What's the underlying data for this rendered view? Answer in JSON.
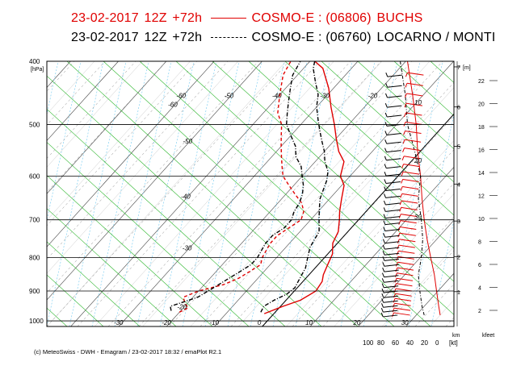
{
  "header": {
    "line1": {
      "date": "23-02-2017",
      "run": "12Z",
      "lead": "+72h",
      "model": "COSMO-E : (06806)",
      "station": "BUCHS",
      "color": "#e00000"
    },
    "line2": {
      "date": "23-02-2017",
      "run": "12Z",
      "lead": "+72h",
      "model": "COSMO-E : (06760)",
      "station": "LOCARNO / MONTI",
      "color": "#000000"
    }
  },
  "footer": "(c) MeteoSwiss - DWH - Emagram / 23-02-2017 18:32 / emaPlot R2.1",
  "chart_data": {
    "type": "line",
    "pressure_axis": {
      "unit": "[hPa]",
      "ticks": [
        400,
        500,
        600,
        700,
        800,
        900,
        1000
      ],
      "range": [
        400,
        1020
      ],
      "scale": "log"
    },
    "temperature_axis": {
      "ticks": [
        -30,
        -20,
        -10,
        0,
        10,
        20,
        30
      ],
      "range": [
        -45,
        40
      ],
      "labels": [
        "-30",
        "-20",
        "-10",
        "0",
        "10",
        "20",
        "30"
      ]
    },
    "isotherm_labels": [
      "-60",
      "-50",
      "-40",
      "-30",
      "-20",
      "-60",
      "-50",
      "-40",
      "-30",
      "-20"
    ],
    "mixing_ratio_labels": [
      "10",
      "20",
      "30"
    ],
    "height_km": {
      "unit": "[m]",
      "label": "km",
      "ticks": [
        1,
        2,
        3,
        4,
        5,
        6,
        7
      ]
    },
    "height_kfeet": {
      "label": "kfeet",
      "ticks": [
        2,
        4,
        6,
        8,
        10,
        12,
        14,
        16,
        18,
        20,
        22
      ]
    },
    "wind_axis": {
      "unit": "[kt]",
      "ticks": [
        100,
        80,
        60,
        40,
        20,
        0
      ]
    },
    "series": [
      {
        "name": "BUCHS T",
        "color": "#e00000",
        "style": "solid",
        "points": [
          [
            -2,
            975
          ],
          [
            0.5,
            950
          ],
          [
            3,
            930
          ],
          [
            4.5,
            900
          ],
          [
            4,
            870
          ],
          [
            3,
            850
          ],
          [
            2,
            820
          ],
          [
            1,
            790
          ],
          [
            -1,
            760
          ],
          [
            -2,
            730
          ],
          [
            -4,
            700
          ],
          [
            -5.5,
            680
          ],
          [
            -7.5,
            650
          ],
          [
            -9.5,
            620
          ],
          [
            -12,
            600
          ],
          [
            -14,
            570
          ],
          [
            -17,
            550
          ],
          [
            -20,
            525
          ],
          [
            -23,
            500
          ],
          [
            -27,
            470
          ],
          [
            -31,
            440
          ],
          [
            -36,
            410
          ],
          [
            -39,
            400
          ]
        ]
      },
      {
        "name": "BUCHS Td",
        "color": "#e00000",
        "style": "dashed",
        "points": [
          [
            -20,
            970
          ],
          [
            -19,
            955
          ],
          [
            -20.5,
            940
          ],
          [
            -22,
            920
          ],
          [
            -20,
            900
          ],
          [
            -16,
            880
          ],
          [
            -14,
            860
          ],
          [
            -13,
            840
          ],
          [
            -12,
            820
          ],
          [
            -13,
            800
          ],
          [
            -13.5,
            780
          ],
          [
            -14,
            760
          ],
          [
            -14,
            740
          ],
          [
            -13,
            720
          ],
          [
            -12,
            700
          ],
          [
            -13,
            680
          ],
          [
            -15,
            660
          ],
          [
            -18,
            640
          ],
          [
            -21,
            620
          ],
          [
            -24,
            600
          ],
          [
            -26,
            580
          ],
          [
            -28,
            560
          ],
          [
            -30,
            540
          ],
          [
            -32,
            520
          ],
          [
            -34,
            500
          ],
          [
            -37,
            480
          ],
          [
            -39,
            460
          ],
          [
            -41,
            440
          ],
          [
            -43,
            420
          ],
          [
            -44,
            400
          ]
        ]
      },
      {
        "name": "LOCARNO / MONTI T",
        "color": "#000000",
        "style": "dashdot",
        "points": [
          [
            -3,
            970
          ],
          [
            -3.5,
            950
          ],
          [
            -2.5,
            930
          ],
          [
            -1,
            910
          ],
          [
            -0.5,
            890
          ],
          [
            -1,
            870
          ],
          [
            -1.5,
            850
          ],
          [
            -2,
            830
          ],
          [
            -3,
            810
          ],
          [
            -4,
            790
          ],
          [
            -5,
            770
          ],
          [
            -5.5,
            750
          ],
          [
            -6,
            730
          ],
          [
            -7.5,
            710
          ],
          [
            -9,
            690
          ],
          [
            -10.5,
            670
          ],
          [
            -12,
            650
          ],
          [
            -13,
            630
          ],
          [
            -14,
            610
          ],
          [
            -15.5,
            590
          ],
          [
            -18,
            570
          ],
          [
            -20,
            550
          ],
          [
            -22.5,
            530
          ],
          [
            -25,
            510
          ],
          [
            -27.5,
            490
          ],
          [
            -30,
            470
          ],
          [
            -32,
            450
          ],
          [
            -35,
            430
          ],
          [
            -38,
            410
          ],
          [
            -39,
            400
          ]
        ]
      },
      {
        "name": "LOCARNO / MONTI Td",
        "color": "#000000",
        "style": "dashdot",
        "points": [
          [
            -22,
            965
          ],
          [
            -23,
            950
          ],
          [
            -21,
            935
          ],
          [
            -19,
            920
          ],
          [
            -18,
            900
          ],
          [
            -17,
            880
          ],
          [
            -16,
            860
          ],
          [
            -15,
            840
          ],
          [
            -14,
            820
          ],
          [
            -14,
            800
          ],
          [
            -14.5,
            780
          ],
          [
            -15,
            760
          ],
          [
            -15,
            740
          ],
          [
            -14,
            720
          ],
          [
            -14,
            700
          ],
          [
            -15,
            680
          ],
          [
            -15.5,
            660
          ],
          [
            -16.5,
            640
          ],
          [
            -18,
            620
          ],
          [
            -20,
            600
          ],
          [
            -22,
            580
          ],
          [
            -25,
            560
          ],
          [
            -27,
            540
          ],
          [
            -30,
            520
          ],
          [
            -33,
            500
          ],
          [
            -35,
            480
          ],
          [
            -37,
            460
          ],
          [
            -39,
            440
          ],
          [
            -41,
            420
          ],
          [
            -42,
            400
          ]
        ]
      }
    ],
    "height_profiles": [
      {
        "name": "BUCHS",
        "color": "#e00000",
        "points": [
          [
            45,
            400
          ],
          [
            38,
            450
          ],
          [
            33,
            500
          ],
          [
            31,
            550
          ],
          [
            27,
            600
          ],
          [
            25,
            650
          ],
          [
            22,
            700
          ],
          [
            18,
            750
          ],
          [
            13,
            800
          ],
          [
            8,
            850
          ],
          [
            5,
            900
          ],
          [
            2,
            950
          ],
          [
            0,
            980
          ]
        ]
      },
      {
        "name": "LOCARNO / MONTI",
        "color": "#000000",
        "points": [
          [
            55,
            400
          ],
          [
            48,
            450
          ],
          [
            45,
            500
          ],
          [
            35,
            550
          ],
          [
            27,
            600
          ],
          [
            30,
            650
          ],
          [
            26,
            700
          ],
          [
            24,
            750
          ],
          [
            26,
            800
          ],
          [
            30,
            850
          ],
          [
            28,
            900
          ],
          [
            25,
            950
          ],
          [
            22,
            980
          ]
        ]
      }
    ]
  }
}
